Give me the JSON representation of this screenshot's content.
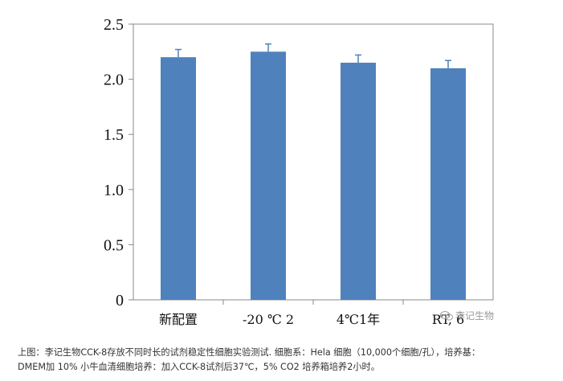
{
  "chart_data": {
    "type": "bar",
    "categories": [
      "新配置",
      "-20 ℃ 2",
      "4℃1年",
      "RT, 6"
    ],
    "values": [
      2.2,
      2.25,
      2.15,
      2.1
    ],
    "error": [
      0.07,
      0.07,
      0.07,
      0.07
    ],
    "ylim": [
      0,
      2.5
    ],
    "yticks": [
      "0",
      "0.5",
      "1.0",
      "1.5",
      "2.0",
      "2.5"
    ],
    "title": "",
    "xlabel": "",
    "ylabel": "",
    "grid": false,
    "bar_color": "#4f81bd",
    "error_color": "#4f81bd"
  },
  "watermark": {
    "text": "李记生物",
    "icon": "wechat-icon"
  },
  "caption": {
    "line1": "上图：李记生物CCK-8存放不同时长的试剂稳定性细胞实验测试. 细胞系：Hela 细胞（10,000个细胞/孔），培养基：",
    "line2": "DMEM加 10% 小牛血清细胞培养：加入CCK-8试剂后37℃，5% CO2 培养箱培养2小时。"
  }
}
